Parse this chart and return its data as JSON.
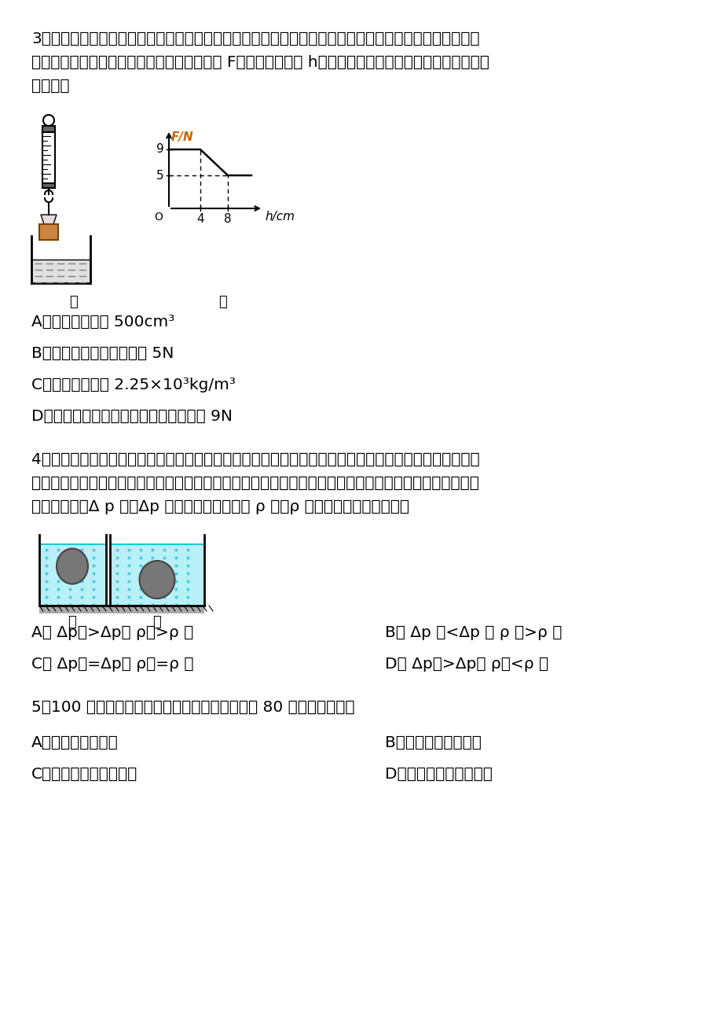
{
  "background_color": "#ffffff",
  "q3_lines": [
    "3、弹簧测力计下挂一长方体物体，将物体从盛有适量水的烧杯上方离水面某一高度处缓缓下降，然后将其",
    "逐渐浸入水中如图甲；图乙是弹簧测力计示数 F与物体下降高度 h变化关系的图像，则下列说法中正确的是",
    "（　　）"
  ],
  "q3_choices": [
    "A．物体的体积是 500cm³",
    "B．物体受到的最大浮力是 5N",
    "C．物体的密度是 2.25×10³kg/m³",
    "D．物体刚浸没时下表面受到水的压力是 9N"
  ],
  "q4_lines": [
    "4、两个底面积不等的圆柱形容器，盛有甲乙两种不同的液体，将两个完全相同的小球分别浸入这两种液体",
    "中，小球静止时的位置如图所示，此时两液面刚好齐平。若将这两小球从液体中取出，则液体对容器底部的",
    "压强的变化量Δ p 甲、Δp 乙和甲乙液体的密度 ρ 甲、ρ 乙的大小关系是（　　）"
  ],
  "q4_choices": [
    [
      "A． Δp甲>Δp乙 ρ甲>ρ 乙",
      "B． Δp 甲<Δp 乙 ρ 甲>ρ 乙"
    ],
    [
      "C． Δp甲=Δp乙 ρ甲=ρ 乙",
      "D． Δp甲>Δp乙 ρ甲<ρ 乙"
    ]
  ],
  "q5_lines": [
    "5、100 克物体放在盛放液体的杯子里，溢出液体 80 克，则（　　）"
  ],
  "q5_choices": [
    [
      "A．物体将沉入杯底",
      "B．物体将浮在液面上"
    ],
    [
      "C．物体将悬浮在液体中",
      "D．无法确定物体的沉浮"
    ]
  ]
}
